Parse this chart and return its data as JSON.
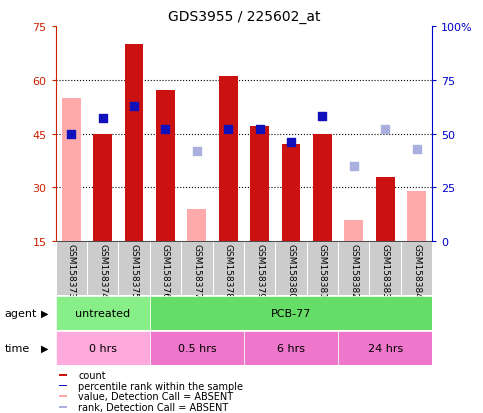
{
  "title": "GDS3955 / 225602_at",
  "samples": [
    "GSM158373",
    "GSM158374",
    "GSM158375",
    "GSM158376",
    "GSM158377",
    "GSM158378",
    "GSM158379",
    "GSM158380",
    "GSM158381",
    "GSM158382",
    "GSM158383",
    "GSM158384"
  ],
  "count_values": [
    null,
    45,
    70,
    57,
    null,
    61,
    47,
    42,
    45,
    null,
    33,
    null
  ],
  "count_absent": [
    55,
    null,
    null,
    null,
    24,
    null,
    null,
    null,
    null,
    21,
    null,
    29
  ],
  "percentile_values": [
    50,
    57,
    63,
    52,
    null,
    52,
    52,
    46,
    58,
    null,
    null,
    null
  ],
  "percentile_absent": [
    null,
    null,
    null,
    null,
    42,
    null,
    null,
    null,
    null,
    35,
    52,
    43
  ],
  "ylim_left": [
    15,
    75
  ],
  "ylim_right": [
    0,
    100
  ],
  "yticks_left": [
    15,
    30,
    45,
    60,
    75
  ],
  "yticks_right": [
    0,
    25,
    50,
    75,
    100
  ],
  "bar_color": "#cc1111",
  "bar_absent_color": "#ffaaaa",
  "dot_color": "#1111bb",
  "dot_absent_color": "#aab0dd",
  "bg_color": "#ffffff",
  "plot_bg": "#ffffff",
  "left_axis_color": "#cc2200",
  "right_axis_color": "#0000cc",
  "agent_untreated_color": "#88ee88",
  "agent_pcb_color": "#66dd66",
  "time_light_color": "#ffaadd",
  "time_dark_color": "#ee77cc",
  "label_bg": "#cccccc",
  "dot_size": 28
}
